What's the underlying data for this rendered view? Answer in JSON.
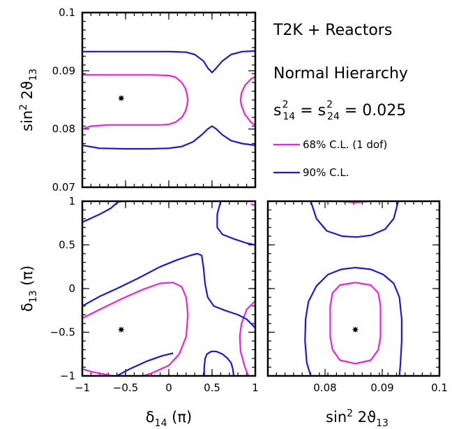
{
  "annotations": {
    "experiment": "T2K + Reactors",
    "hierarchy": "Normal Hierarchy",
    "mixing_prefix": "s",
    "mixing_idx1": "14",
    "mixing_mid": " = s",
    "mixing_idx2": "24",
    "mixing_exp": "2",
    "mixing_value": " = 0.025"
  },
  "axis_labels": {
    "sin_prefix": "sin",
    "sin_exp": "2",
    "sin_mid": " 2ϑ",
    "sin_sub": "13",
    "d14_main": "δ",
    "d14_sub": "14",
    "d14_unit": " (π)",
    "d13_main": "δ",
    "d13_sub": "13",
    "d13_unit": " (π)"
  },
  "colors": {
    "cl68": "#ee22dd",
    "cl90": "#1a1ad6",
    "frame": "#000000"
  },
  "chart_data": [
    {
      "type": "line",
      "panel": "top-left",
      "xlim": [
        -1,
        1
      ],
      "ylim": [
        0.07,
        0.1
      ],
      "y_ticks": [
        "0.07",
        "0.08",
        "0.09",
        "0.1"
      ],
      "best_fit": {
        "x": -0.55,
        "y": 0.0853
      },
      "series": [
        {
          "name": "68% C.L. (1 dof)",
          "color": "#ee22dd",
          "paths": [
            [
              [
                -1.0,
                0.08
              ],
              [
                -0.9,
                0.0805
              ],
              [
                -0.7,
                0.0807
              ],
              [
                -0.5,
                0.0807
              ],
              [
                -0.3,
                0.0807
              ],
              [
                -0.1,
                0.0807
              ],
              [
                0.0,
                0.0808
              ],
              [
                0.08,
                0.0812
              ],
              [
                0.15,
                0.082
              ],
              [
                0.19,
                0.083
              ],
              [
                0.21,
                0.084
              ],
              [
                0.22,
                0.085
              ],
              [
                0.21,
                0.086
              ],
              [
                0.19,
                0.087
              ],
              [
                0.15,
                0.088
              ],
              [
                0.08,
                0.0889
              ],
              [
                0.0,
                0.0892
              ],
              [
                -0.2,
                0.0893
              ],
              [
                -0.5,
                0.0893
              ],
              [
                -0.8,
                0.0893
              ],
              [
                -1.0,
                0.0893
              ]
            ],
            [
              [
                1.0,
                0.0806
              ],
              [
                0.95,
                0.0812
              ],
              [
                0.88,
                0.0825
              ],
              [
                0.84,
                0.084
              ],
              [
                0.83,
                0.085
              ],
              [
                0.84,
                0.0862
              ],
              [
                0.88,
                0.0875
              ],
              [
                0.95,
                0.0886
              ],
              [
                1.0,
                0.089
              ]
            ]
          ]
        },
        {
          "name": "90% C.L.",
          "color": "#1a1ad6",
          "paths": [
            [
              [
                -1.0,
                0.0933
              ],
              [
                -0.5,
                0.0933
              ],
              [
                0.0,
                0.0933
              ],
              [
                0.2,
                0.0932
              ],
              [
                0.3,
                0.0928
              ],
              [
                0.4,
                0.0917
              ],
              [
                0.45,
                0.0905
              ],
              [
                0.5,
                0.0897
              ],
              [
                0.55,
                0.0905
              ],
              [
                0.62,
                0.0917
              ],
              [
                0.72,
                0.0928
              ],
              [
                0.85,
                0.0933
              ],
              [
                1.0,
                0.0934
              ]
            ],
            [
              [
                -1.0,
                0.0772
              ],
              [
                -0.8,
                0.0767
              ],
              [
                -0.5,
                0.0766
              ],
              [
                -0.2,
                0.0766
              ],
              [
                0.0,
                0.0767
              ],
              [
                0.15,
                0.077
              ],
              [
                0.28,
                0.0778
              ],
              [
                0.38,
                0.079
              ],
              [
                0.45,
                0.08
              ],
              [
                0.5,
                0.0805
              ],
              [
                0.55,
                0.08
              ],
              [
                0.62,
                0.079
              ],
              [
                0.72,
                0.078
              ],
              [
                0.85,
                0.0775
              ],
              [
                1.0,
                0.0772
              ]
            ]
          ]
        }
      ]
    },
    {
      "type": "line",
      "panel": "bottom-left",
      "xlabel": "δ14 (π)",
      "ylabel": "δ13 (π)",
      "xlim": [
        -1,
        1
      ],
      "ylim": [
        -1,
        1
      ],
      "x_ticks": [
        "−1",
        "−0.5",
        "0",
        "0.5",
        "1"
      ],
      "y_ticks": [
        "−1",
        "−0.5",
        "0",
        "0.5",
        "1"
      ],
      "best_fit": {
        "x": -0.55,
        "y": -0.47
      },
      "series": [
        {
          "name": "68% C.L. (1 dof)",
          "color": "#ee22dd",
          "paths": [
            [
              [
                -1.0,
                -0.34
              ],
              [
                -0.8,
                -0.24
              ],
              [
                -0.55,
                -0.12
              ],
              [
                -0.3,
                -0.01
              ],
              [
                -0.1,
                0.06
              ],
              [
                0.05,
                0.07
              ],
              [
                0.15,
                0.02
              ],
              [
                0.2,
                -0.1
              ],
              [
                0.22,
                -0.3
              ],
              [
                0.2,
                -0.55
              ],
              [
                0.12,
                -0.75
              ],
              [
                0.0,
                -0.88
              ],
              [
                -0.2,
                -0.97
              ],
              [
                -0.3,
                -1.0
              ]
            ],
            [
              [
                -0.65,
                -1.0
              ],
              [
                -0.8,
                -0.97
              ],
              [
                -0.9,
                -0.95
              ],
              [
                -1.0,
                -0.92
              ]
            ],
            [
              [
                1.0,
                -0.14
              ],
              [
                0.9,
                -0.24
              ],
              [
                0.84,
                -0.4
              ],
              [
                0.82,
                -0.55
              ],
              [
                0.83,
                -0.72
              ],
              [
                0.88,
                -0.9
              ],
              [
                0.92,
                -1.0
              ]
            ],
            [
              [
                -0.53,
                1.0
              ],
              [
                -0.6,
                0.985
              ]
            ],
            [
              [
                0.95,
                0.97
              ],
              [
                1.0,
                0.95
              ]
            ]
          ]
        },
        {
          "name": "90% C.L.",
          "color": "#1a1ad6",
          "paths": [
            [
              [
                -1.0,
                -0.2
              ],
              [
                -0.8,
                -0.09
              ],
              [
                -0.6,
                0.0
              ],
              [
                -0.35,
                0.12
              ],
              [
                -0.1,
                0.25
              ],
              [
                0.1,
                0.33
              ],
              [
                0.25,
                0.38
              ],
              [
                0.33,
                0.4
              ],
              [
                0.38,
                0.38
              ],
              [
                0.4,
                0.25
              ],
              [
                0.42,
                0.05
              ],
              [
                0.45,
                -0.1
              ],
              [
                0.52,
                -0.2
              ],
              [
                0.65,
                -0.25
              ],
              [
                0.8,
                -0.3
              ],
              [
                0.9,
                -0.35
              ],
              [
                1.0,
                -0.45
              ]
            ],
            [
              [
                -1.0,
                0.76
              ],
              [
                -0.8,
                0.85
              ],
              [
                -0.67,
                0.92
              ],
              [
                -0.58,
                1.0
              ]
            ],
            [
              [
                0.6,
                1.0
              ],
              [
                0.56,
                0.85
              ],
              [
                0.56,
                0.7
              ],
              [
                0.62,
                0.62
              ],
              [
                0.75,
                0.57
              ],
              [
                0.9,
                0.52
              ],
              [
                1.0,
                0.5
              ]
            ],
            [
              [
                -0.6,
                -1.0
              ],
              [
                -0.45,
                -0.92
              ],
              [
                -0.25,
                -0.83
              ],
              [
                -0.08,
                -0.77
              ],
              [
                0.05,
                -0.74
              ]
            ],
            [
              [
                0.75,
                -1.0
              ],
              [
                0.74,
                -0.92
              ],
              [
                0.72,
                -0.85
              ],
              [
                0.68,
                -0.8
              ],
              [
                0.62,
                -0.75
              ],
              [
                0.55,
                -0.72
              ],
              [
                0.49,
                -0.72
              ],
              [
                0.44,
                -0.75
              ],
              [
                0.42,
                -0.8
              ],
              [
                0.41,
                -0.9
              ],
              [
                0.41,
                -1.0
              ]
            ]
          ]
        }
      ]
    },
    {
      "type": "line",
      "panel": "bottom-right",
      "xlabel": "sin² 2ϑ13",
      "xlim": [
        0.07,
        0.1
      ],
      "ylim": [
        -1,
        1
      ],
      "x_ticks": [
        "0.08",
        "0.09",
        "0.1"
      ],
      "best_fit": {
        "x": 0.0853,
        "y": -0.47
      },
      "series": [
        {
          "name": "68% C.L. (1 dof)",
          "color": "#ee22dd",
          "paths": [
            [
              [
                0.0853,
                0.07
              ],
              [
                0.088,
                0.04
              ],
              [
                0.0893,
                -0.05
              ],
              [
                0.0897,
                -0.2
              ],
              [
                0.0897,
                -0.55
              ],
              [
                0.0893,
                -0.7
              ],
              [
                0.088,
                -0.82
              ],
              [
                0.0853,
                -0.86
              ],
              [
                0.0826,
                -0.82
              ],
              [
                0.0813,
                -0.7
              ],
              [
                0.0809,
                -0.55
              ],
              [
                0.0809,
                -0.2
              ],
              [
                0.0813,
                -0.05
              ],
              [
                0.0826,
                0.04
              ],
              [
                0.0853,
                0.07
              ]
            ],
            [
              [
                0.0825,
                1.0
              ],
              [
                0.0853,
                0.985
              ],
              [
                0.088,
                1.0
              ]
            ]
          ]
        },
        {
          "name": "90% C.L.",
          "color": "#1a1ad6",
          "paths": [
            [
              [
                0.0775,
                -1.0
              ],
              [
                0.0768,
                -0.85
              ],
              [
                0.0765,
                -0.6
              ],
              [
                0.0766,
                -0.35
              ],
              [
                0.0771,
                -0.15
              ],
              [
                0.0785,
                0.03
              ],
              [
                0.0805,
                0.16
              ],
              [
                0.0828,
                0.22
              ],
              [
                0.0853,
                0.24
              ],
              [
                0.088,
                0.22
              ],
              [
                0.0902,
                0.16
              ],
              [
                0.092,
                0.06
              ],
              [
                0.093,
                -0.1
              ],
              [
                0.0934,
                -0.35
              ],
              [
                0.0934,
                -0.6
              ],
              [
                0.0932,
                -0.85
              ],
              [
                0.093,
                -1.0
              ]
            ],
            [
              [
                0.0775,
                1.0
              ],
              [
                0.0785,
                0.8
              ],
              [
                0.0803,
                0.66
              ],
              [
                0.083,
                0.6
              ],
              [
                0.0855,
                0.59
              ],
              [
                0.088,
                0.61
              ],
              [
                0.0905,
                0.68
              ],
              [
                0.092,
                0.8
              ],
              [
                0.0928,
                1.0
              ]
            ]
          ]
        }
      ]
    }
  ]
}
